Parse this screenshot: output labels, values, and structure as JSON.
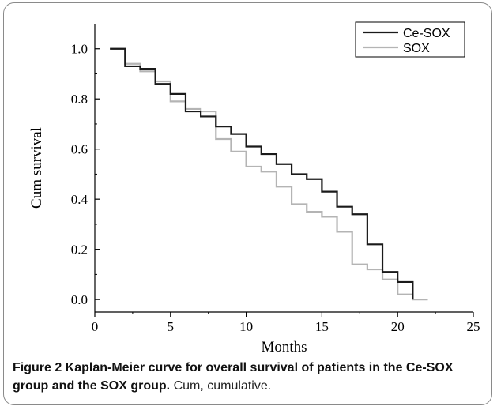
{
  "chart_data": {
    "type": "line",
    "style": "step",
    "xlabel": "Months",
    "ylabel": "Cum survival",
    "xlim": [
      0,
      25
    ],
    "ylim": [
      -0.05,
      1.1
    ],
    "xticks": [
      "0",
      "5",
      "10",
      "15",
      "20",
      "25"
    ],
    "yticks": [
      "0.0",
      "0.2",
      "0.4",
      "0.6",
      "0.8",
      "1.0"
    ],
    "grid": false,
    "legend_position": "top-right",
    "series": [
      {
        "name": "Ce-SOX",
        "color": "#1a1a1a",
        "points": [
          [
            1,
            1.0
          ],
          [
            2,
            0.93
          ],
          [
            3,
            0.92
          ],
          [
            4,
            0.86
          ],
          [
            5,
            0.82
          ],
          [
            6,
            0.75
          ],
          [
            7,
            0.73
          ],
          [
            8,
            0.69
          ],
          [
            9,
            0.66
          ],
          [
            10,
            0.61
          ],
          [
            11,
            0.58
          ],
          [
            12,
            0.54
          ],
          [
            13,
            0.5
          ],
          [
            14,
            0.48
          ],
          [
            15,
            0.43
          ],
          [
            16,
            0.37
          ],
          [
            17,
            0.34
          ],
          [
            18,
            0.22
          ],
          [
            19,
            0.11
          ],
          [
            20,
            0.07
          ],
          [
            21,
            0.0
          ]
        ]
      },
      {
        "name": "SOX",
        "color": "#b4b4b4",
        "points": [
          [
            1,
            1.0
          ],
          [
            2,
            0.94
          ],
          [
            3,
            0.91
          ],
          [
            4,
            0.87
          ],
          [
            5,
            0.79
          ],
          [
            6,
            0.76
          ],
          [
            7,
            0.75
          ],
          [
            8,
            0.64
          ],
          [
            9,
            0.59
          ],
          [
            10,
            0.53
          ],
          [
            11,
            0.51
          ],
          [
            12,
            0.45
          ],
          [
            13,
            0.38
          ],
          [
            14,
            0.35
          ],
          [
            15,
            0.33
          ],
          [
            16,
            0.27
          ],
          [
            17,
            0.14
          ],
          [
            18,
            0.12
          ],
          [
            19,
            0.08
          ],
          [
            20,
            0.02
          ],
          [
            21,
            0.0
          ],
          [
            22,
            0.0
          ]
        ]
      }
    ]
  },
  "caption": {
    "title": "Figure 2 Kaplan-Meier curve for overall survival of patients in the Ce-SOX group and the SOX group.",
    "note": "Cum, cumulative."
  }
}
